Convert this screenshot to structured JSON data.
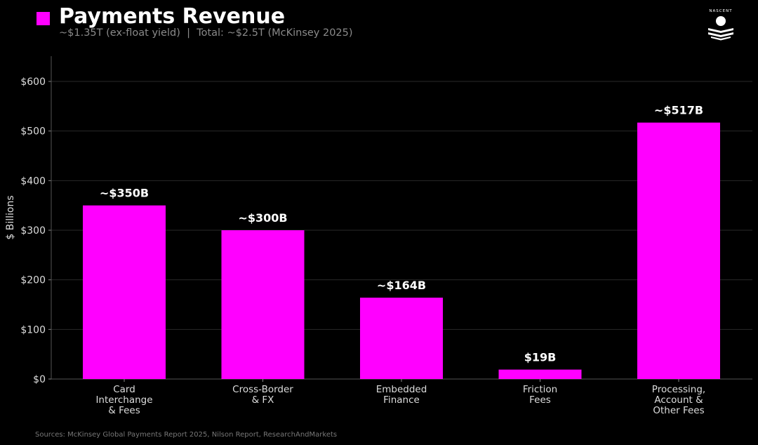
{
  "header": {
    "title": "Payments Revenue",
    "subtitle": "~$1.35T (ex-float yield)  |  Total: ~$2.5T (McKinsey 2025)",
    "logo_text": "NASCENT"
  },
  "footer": {
    "sources": "Sources: McKinsey Global Payments Report 2025, Nilson Report, ResearchAndMarkets"
  },
  "chart_data": {
    "type": "bar",
    "categories": [
      "Card\nInterchange\n& Fees",
      "Cross-Border\n& FX",
      "Embedded\nFinance",
      "Friction\nFees",
      "Processing,\nAccount &\nOther Fees"
    ],
    "values": [
      350,
      300,
      164,
      19,
      517
    ],
    "data_labels": [
      "~$350B",
      "~$300B",
      "~$164B",
      "$19B",
      "~$517B"
    ],
    "ylabel": "$ Billions",
    "ylim": [
      0,
      650
    ],
    "yticks": [
      0,
      100,
      200,
      300,
      400,
      500,
      600
    ],
    "ytick_labels": [
      "$0",
      "$100",
      "$200",
      "$300",
      "$400",
      "$500",
      "$600"
    ],
    "grid": true,
    "bar_color": "#ff00ff",
    "background": "#000000"
  }
}
